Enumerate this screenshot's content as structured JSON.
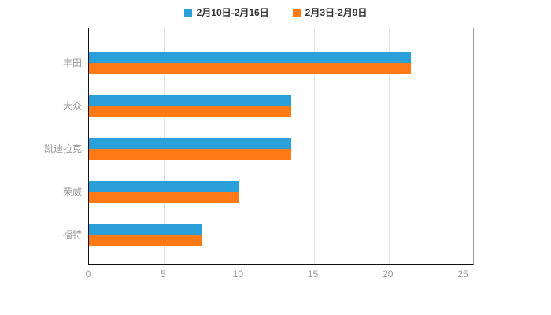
{
  "chart_data": {
    "type": "bar",
    "orientation": "horizontal",
    "title": "",
    "categories": [
      "丰田",
      "大众",
      "凯迪拉克",
      "荣威",
      "福特"
    ],
    "series": [
      {
        "name": "2月10日-2月16日",
        "color": "#2B9FD9",
        "values": [
          21.5,
          13.5,
          13.5,
          10,
          7.5
        ]
      },
      {
        "name": "2月3日-2月9日",
        "color": "#FF7A14",
        "values": [
          21.5,
          13.5,
          13.5,
          10,
          7.5
        ]
      }
    ],
    "xlim": [
      0,
      25
    ],
    "x_ticks": [
      "0",
      "5",
      "10",
      "15",
      "20",
      "25"
    ],
    "xlabel": "",
    "ylabel": "",
    "grid": true,
    "legend_position": "top"
  },
  "styles": {
    "background": "#ffffff",
    "axis_color": "#111111",
    "grid_color": "#e4e4e4",
    "label_color": "#999999",
    "legend_text_color": "#333333"
  }
}
